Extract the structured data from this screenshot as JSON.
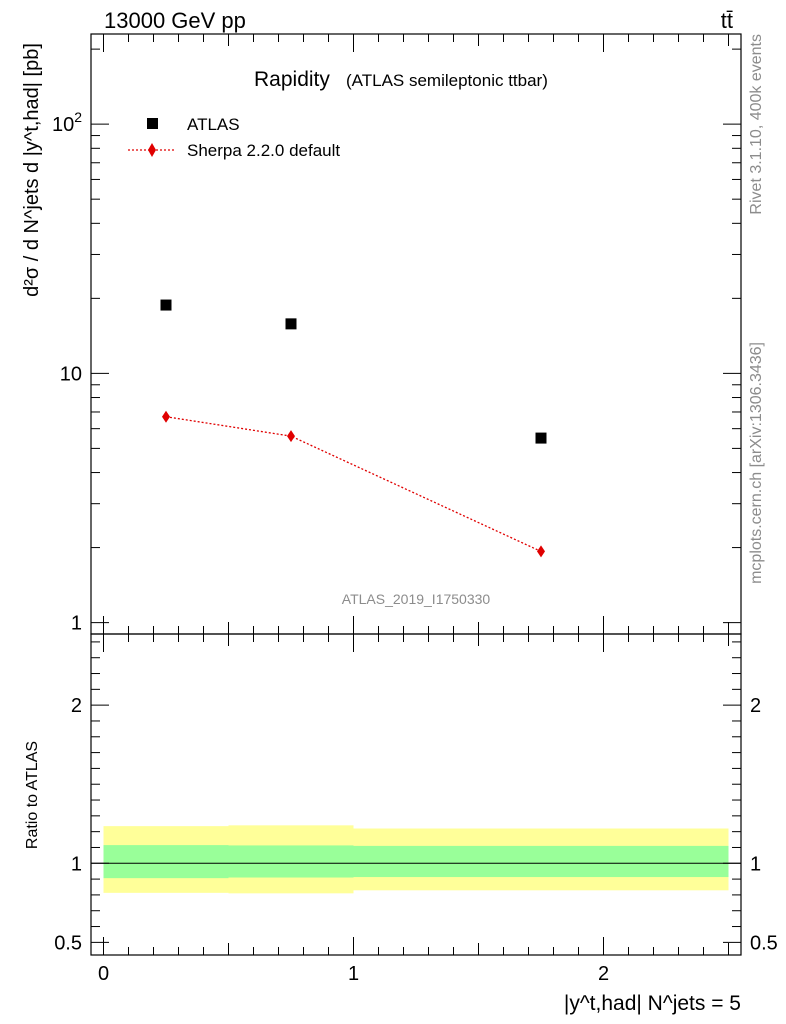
{
  "header": {
    "energy_label": "13000 GeV pp",
    "process_label": "tt̄"
  },
  "side_labels": {
    "rivet": "Rivet 3.1.10,  400k events",
    "mcplots": "mcplots.cern.ch [arXiv:1306.3436]"
  },
  "analysis_id": "ATLAS_2019_I1750330",
  "chart_data": [
    {
      "type": "scatter",
      "title": "Rapidity",
      "subtitle": "(ATLAS semileptonic ttbar)",
      "ylabel": "d²σ / d N^jets d |y^t,had| [pb]",
      "y_scale": "log",
      "ylim": [
        0.9,
        230
      ],
      "xlim": [
        -0.05,
        2.55
      ],
      "y_ticks": [
        {
          "value": 1,
          "label": "1"
        },
        {
          "value": 10,
          "label": "10"
        },
        {
          "value": 100,
          "label": "10²"
        }
      ],
      "legend_placement": "top-left",
      "series": [
        {
          "name": "ATLAS",
          "marker": "square",
          "color": "#000000",
          "x": [
            0.25,
            0.75,
            1.75
          ],
          "y": [
            18.8,
            15.8,
            5.5
          ]
        },
        {
          "name": "Sherpa 2.2.0 default",
          "marker": "diamond",
          "line": "dotted",
          "color": "#e00000",
          "x": [
            0.25,
            0.75,
            1.75
          ],
          "y": [
            6.7,
            5.6,
            1.93
          ]
        }
      ]
    },
    {
      "type": "area",
      "ylabel": "Ratio to ATLAS",
      "xlabel": "|y^t,had| N^jets = 5",
      "ylim": [
        0.42,
        2.45
      ],
      "xlim": [
        -0.05,
        2.55
      ],
      "x_ticks": [
        {
          "value": 0,
          "label": "0"
        },
        {
          "value": 1,
          "label": "1"
        },
        {
          "value": 2,
          "label": "2"
        }
      ],
      "y_ticks": [
        {
          "value": 0.5,
          "label": "0.5"
        },
        {
          "value": 1,
          "label": "1"
        },
        {
          "value": 2,
          "label": "2"
        }
      ],
      "reference_line": 1,
      "bands": [
        {
          "band": "total uncertainty",
          "color": "#ffff99",
          "bins": [
            {
              "x0": 0.0,
              "x1": 0.5,
              "lo": 0.813,
              "hi": 1.235
            },
            {
              "x0": 0.5,
              "x1": 1.0,
              "lo": 0.81,
              "hi": 1.24
            },
            {
              "x0": 1.0,
              "x1": 2.5,
              "lo": 0.829,
              "hi": 1.22
            }
          ]
        },
        {
          "band": "statistical uncertainty",
          "color": "#99ff99",
          "bins": [
            {
              "x0": 0.0,
              "x1": 0.5,
              "lo": 0.906,
              "hi": 1.115
            },
            {
              "x0": 0.5,
              "x1": 1.0,
              "lo": 0.91,
              "hi": 1.113
            },
            {
              "x0": 1.0,
              "x1": 2.5,
              "lo": 0.913,
              "hi": 1.11
            }
          ]
        }
      ]
    }
  ]
}
